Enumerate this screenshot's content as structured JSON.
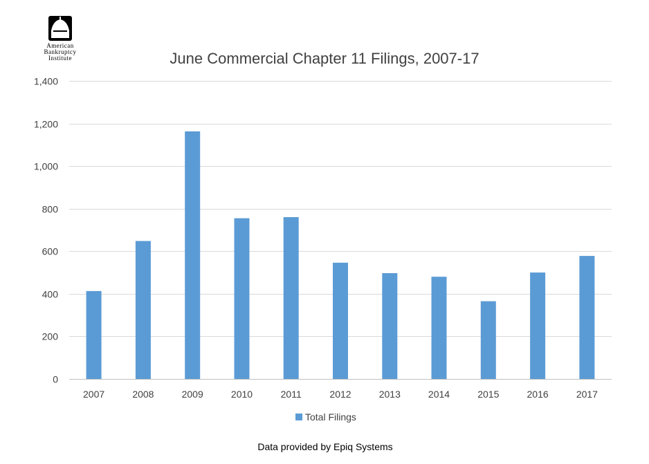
{
  "logo": {
    "lines": [
      "American",
      "Bankruptcy",
      "Institute"
    ]
  },
  "footer": {
    "text": "Data provided by Epiq Systems"
  },
  "colors": {
    "bar": "#5b9bd5",
    "grid": "#d9d9d9",
    "text": "#404040"
  },
  "chart_data": {
    "type": "bar",
    "title": "June Commercial Chapter 11 Filings, 2007-17",
    "xlabel": "",
    "ylabel": "",
    "categories": [
      "2007",
      "2008",
      "2009",
      "2010",
      "2011",
      "2012",
      "2013",
      "2014",
      "2015",
      "2016",
      "2017"
    ],
    "series": [
      {
        "name": "Total Filings",
        "values": [
          413,
          648,
          1163,
          755,
          760,
          546,
          497,
          480,
          365,
          500,
          578
        ]
      }
    ],
    "ylim": [
      0,
      1400
    ],
    "yticks": [
      0,
      200,
      400,
      600,
      800,
      1000,
      1200,
      1400
    ],
    "ytick_labels": [
      "0",
      "200",
      "400",
      "600",
      "800",
      "1,000",
      "1,200",
      "1,400"
    ],
    "grid": true,
    "legend_position": "bottom"
  }
}
